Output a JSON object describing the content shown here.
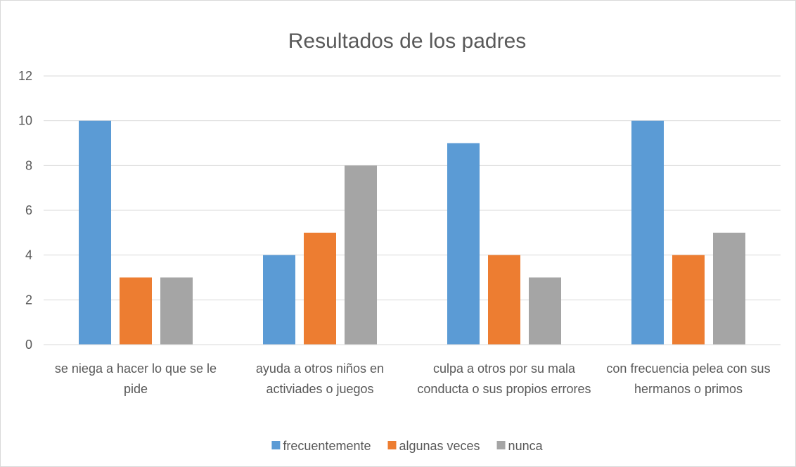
{
  "chart_data": {
    "type": "bar",
    "title": "Resultados de los padres",
    "categories": [
      "se niega a hacer lo que se le pide",
      "ayuda a otros niños en activiades o juegos",
      "culpa a otros por su mala conducta o sus propios errores",
      "con frecuencia pelea con sus hermanos o primos"
    ],
    "series": [
      {
        "name": "frecuentemente",
        "color": "#5b9bd5",
        "values": [
          10,
          4,
          9,
          10
        ]
      },
      {
        "name": "algunas veces",
        "color": "#ed7d31",
        "values": [
          3,
          5,
          4,
          4
        ]
      },
      {
        "name": "nunca",
        "color": "#a5a5a5",
        "values": [
          3,
          8,
          3,
          5
        ]
      }
    ],
    "ylim": [
      0,
      12
    ],
    "yticks": [
      0,
      2,
      4,
      6,
      8,
      10,
      12
    ],
    "grid": true,
    "legend": "bottom"
  }
}
